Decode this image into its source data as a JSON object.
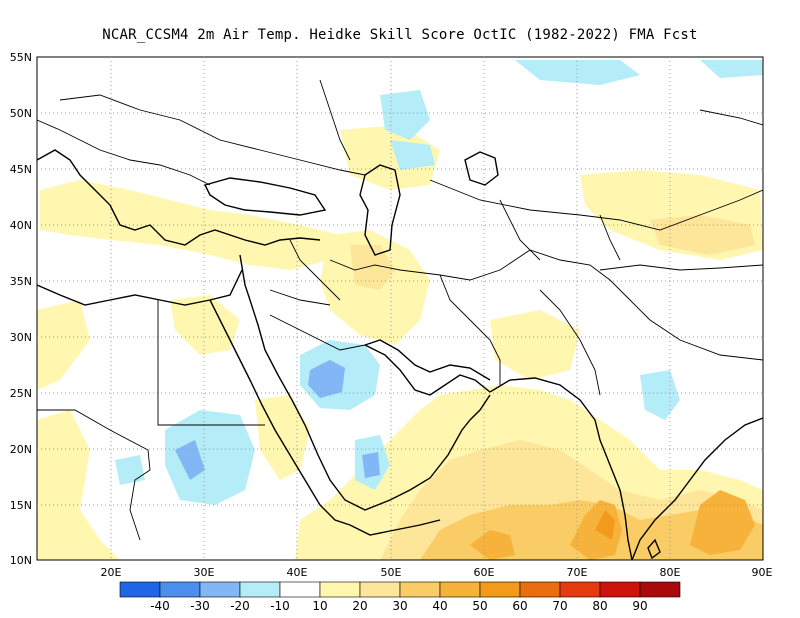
{
  "title": "NCAR_CCSM4  2m Air Temp. Heidke Skill Score OctIC (1982-2022) FMA Fcst",
  "map": {
    "lat_labels": [
      "55N",
      "50N",
      "45N",
      "40N",
      "35N",
      "30N",
      "25N",
      "20N",
      "15N",
      "10N"
    ],
    "lon_labels": [
      "20E",
      "30E",
      "40E",
      "50E",
      "60E",
      "70E",
      "80E",
      "90E"
    ],
    "lat_range": [
      10,
      55
    ],
    "lon_range": [
      12,
      90
    ],
    "grid": "dotted"
  },
  "colorbar": {
    "colors": [
      "#1f66e6",
      "#4a8ff0",
      "#82b6f5",
      "#b4ecf8",
      "#ffffff",
      "#fff7b0",
      "#fde59a",
      "#f9cc66",
      "#f7b23c",
      "#f39a1a",
      "#ea6d10",
      "#e33b0b",
      "#cd140a",
      "#a9090a"
    ],
    "labels": [
      "-40",
      "-30",
      "-20",
      "-10",
      "10",
      "20",
      "30",
      "40",
      "50",
      "60",
      "70",
      "80",
      "90"
    ]
  },
  "colors": {
    "light_blue": "#b4ecf8",
    "mid_blue": "#82b6f5",
    "blue": "#5c9af0",
    "pale_yellow": "#fff7b0",
    "yellow": "#fde59a",
    "light_orange": "#f9cc66",
    "orange": "#f7b23c",
    "dark_orange": "#f39a1a"
  }
}
